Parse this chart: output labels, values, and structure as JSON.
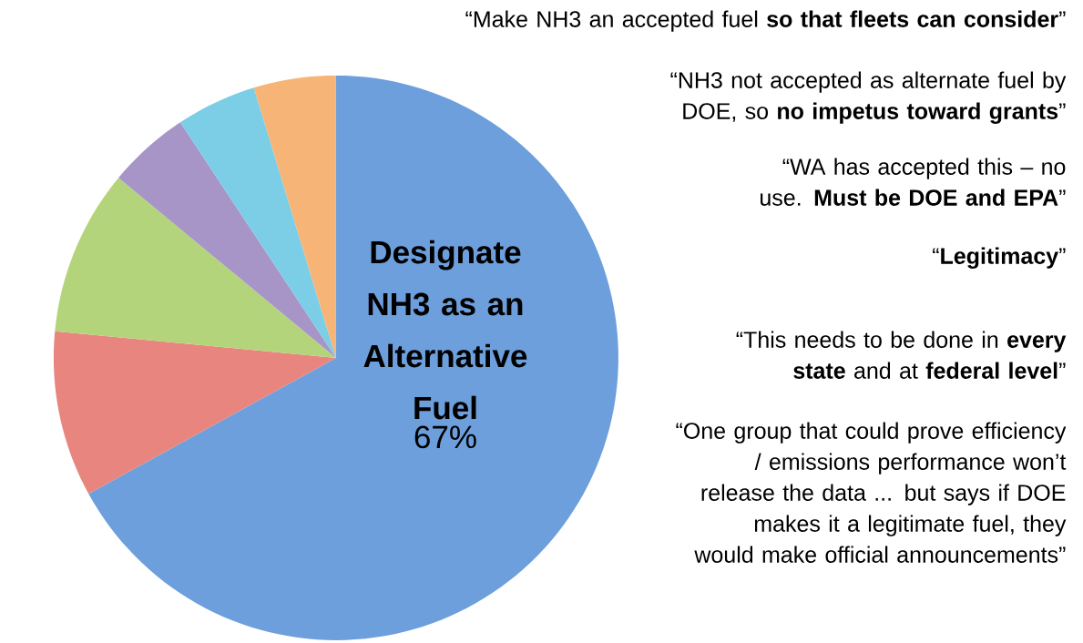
{
  "chart_data": {
    "type": "pie",
    "categories": [
      "Designate NH3 as an Alternative Fuel",
      null,
      null,
      null,
      null,
      null
    ],
    "values": [
      67,
      9.5,
      9.5,
      4.7,
      4.6,
      4.7
    ],
    "value_labels": [
      "67%",
      null,
      null,
      null,
      null,
      null
    ],
    "colors": [
      "#6c9fdc",
      "#e8857e",
      "#b3d47a",
      "#a795c8",
      "#7ccde6",
      "#f7b477"
    ],
    "annotations": [
      "“Make NH3 an accepted fuel **so that fleets can consider**”",
      "“NH3 not accepted as alternate fuel by DOE, so **no impetus toward grants**”",
      "“WA has accepted this – no use. **Must be DOE and EPA**”",
      "“**Legitimacy**”",
      "“This needs to be done in **every state** and at **federal level**”",
      "“One group that could prove efficiency / emissions performance won’t release the data ... but says if DOE makes it a legitimate fuel, they would make official announcements”"
    ]
  }
}
